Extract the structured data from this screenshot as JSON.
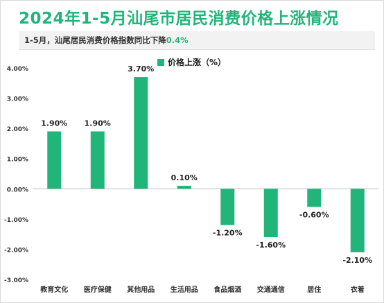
{
  "title": "2024年1-5月汕尾市居民消费价格上涨情况",
  "subtitle": {
    "text": "1-5月，汕尾居民消费价格指数同比下降",
    "value": "0.4%"
  },
  "colors": {
    "bar": "#21b57a",
    "title": "#21b57a"
  },
  "chart_data": {
    "type": "bar",
    "categories": [
      "教育文化",
      "医疗保健",
      "其他用品",
      "生活用品",
      "食品烟酒",
      "交通通信",
      "居住",
      "衣着"
    ],
    "series": [
      {
        "name": "价格上涨（%）",
        "values": [
          1.9,
          1.9,
          3.7,
          0.1,
          -1.2,
          -1.6,
          -0.6,
          -2.1
        ],
        "labels": [
          "1.90%",
          "1.90%",
          "3.70%",
          "0.10%",
          "-1.20%",
          "-1.60%",
          "-0.60%",
          "-2.10%"
        ]
      }
    ],
    "ylim": [
      -3,
      4
    ],
    "yticks": [
      4,
      3,
      2,
      1,
      0,
      -1,
      -2,
      -3
    ],
    "ytick_labels": [
      "4.00%",
      "3.00%",
      "2.00%",
      "1.00%",
      "0.00%",
      "-1.00%",
      "-2.00%",
      "-3.00%"
    ],
    "legend_position": "top-center",
    "grid": false
  }
}
